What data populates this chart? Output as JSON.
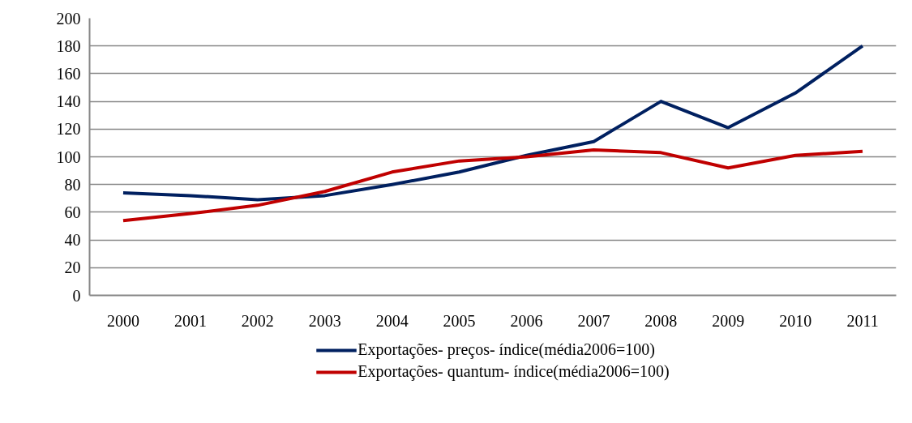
{
  "chart_data": {
    "type": "line",
    "categories": [
      "2000",
      "2001",
      "2002",
      "2003",
      "2004",
      "2005",
      "2006",
      "2007",
      "2008",
      "2009",
      "2010",
      "2011"
    ],
    "series": [
      {
        "name": "Exportações- preços- índice(média2006=100)",
        "color": "#002060",
        "values": [
          74,
          72,
          69,
          72,
          80,
          89,
          101,
          111,
          140,
          121,
          146,
          180
        ]
      },
      {
        "name": "Exportações- quantum- índice(média2006=100)",
        "color": "#c00000",
        "values": [
          54,
          59,
          65,
          75,
          89,
          97,
          100,
          105,
          103,
          92,
          101,
          104
        ]
      }
    ],
    "ylim": [
      0,
      200
    ],
    "yticks": [
      0,
      20,
      40,
      60,
      80,
      100,
      120,
      140,
      160,
      180,
      200
    ],
    "grid": "y",
    "legend": "bottom",
    "marker": "none",
    "line_style": "solid"
  }
}
